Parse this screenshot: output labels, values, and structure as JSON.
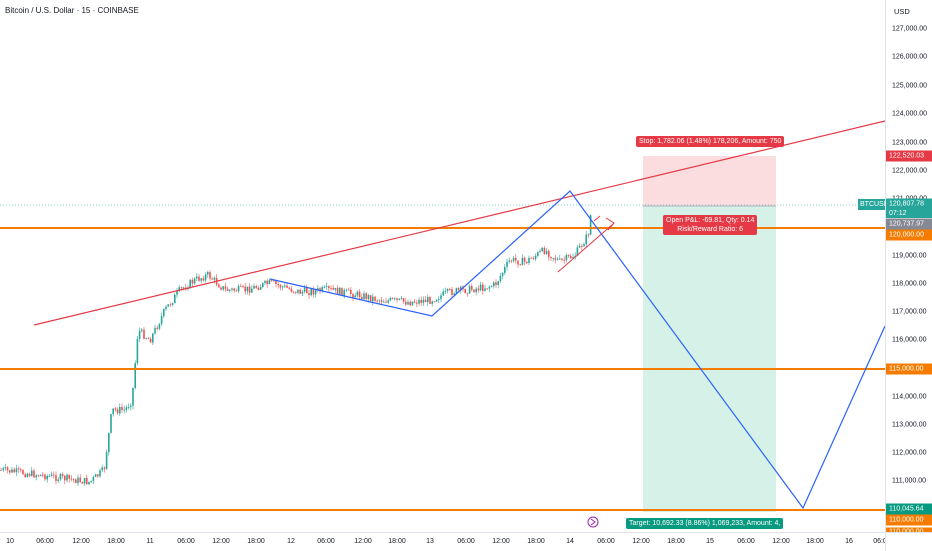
{
  "title": "Bitcoin / U.S. Dollar · 15 · COINBASE",
  "price_axis": {
    "currency": "USD",
    "ticks": [
      "127,000.00",
      "126,000.00",
      "125,000.00",
      "124,000.00",
      "123,000.00",
      "122,000.00",
      "121,000.00",
      "119,000.00",
      "118,000.00",
      "117,000.00",
      "116,000.00",
      "114,000.00",
      "113,000.00",
      "112,000.00",
      "111,000.00"
    ],
    "tags": {
      "stop": "122,520.03",
      "last": "120,807.78",
      "countdown": "07:12",
      "entry": "120,737.97",
      "level_120": "120,000.00",
      "level_115": "115,000.00",
      "target": "110,045.64",
      "level_110": "110,000.00",
      "level_109": "110,000.00"
    }
  },
  "symbol_label": "BTCUSD",
  "time_axis": [
    "10",
    "06:00",
    "12:00",
    "18:00",
    "11",
    "06:00",
    "12:00",
    "18:00",
    "12",
    "06:00",
    "12:00",
    "18:00",
    "13",
    "06:00",
    "12:00",
    "18:00",
    "14",
    "06:00",
    "12:00",
    "18:00",
    "15",
    "06:00",
    "12:00",
    "18:00",
    "16",
    "06:0"
  ],
  "position": {
    "stop_label": "Stop: 1,782.06 (1.48%) 178,206, Amount: 750",
    "pnl_label": "Open P&L: -69.81, Qty: 0.14",
    "rr_label": "Risk/Reward Ratio: 6",
    "target_label": "Target: 10,692.33 (8.86%) 1,069,233, Amount: 4,"
  },
  "colors": {
    "up": "#26a69a",
    "down": "#ef5350",
    "orange": "#f57c00",
    "red_line": "#e53945",
    "blue_line": "#2962ff",
    "stop_zone": "#f8d7da",
    "target_zone": "#d3efe7"
  },
  "icons": [
    "flag-icon",
    "eye-icon"
  ]
}
